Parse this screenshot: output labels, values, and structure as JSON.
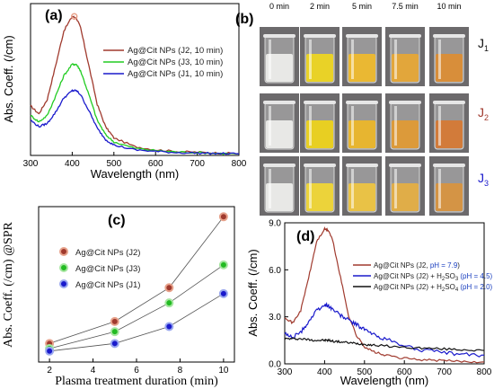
{
  "colors": {
    "red": "#a03a2e",
    "green": "#22cc22",
    "blue": "#1a1acc",
    "black": "#111111",
    "pH_blue": "#1a3fbf"
  },
  "panel_a": {
    "letter": "(a)",
    "xlabel": "Wavelength (nm)",
    "ylabel": "Abs. Coeff. (/cm)",
    "legend": [
      "Ag@Cit NPs (J2, 10 min)",
      "Ag@Cit NPs (J3, 10 min)",
      "Ag@Cit NPs (J1, 10 min)"
    ]
  },
  "panel_b": {
    "letter": "(b)",
    "time_headers": [
      "0 min",
      "2 min",
      "5 min",
      "7.5 min",
      "10 min"
    ],
    "row_labels": [
      {
        "main": "J",
        "sub": "1"
      },
      {
        "main": "J",
        "sub": "2"
      },
      {
        "main": "J",
        "sub": "3"
      }
    ],
    "photo_colors": [
      [
        "#e8e8e6",
        "#e9d227",
        "#eab833",
        "#e2a63b",
        "#d88e3a"
      ],
      [
        "#e8e8e6",
        "#e8cf22",
        "#e7b530",
        "#dc9a3a",
        "#d27b3a"
      ],
      [
        "#e8e8e6",
        "#ecd33a",
        "#e9c246",
        "#e0ad48",
        "#d49445"
      ]
    ]
  },
  "panel_c": {
    "letter": "(c)",
    "xlabel": "Plasma treatment duration (min)",
    "ylabel": "Abs. Coeff. (/cm) @SPR",
    "legend": [
      "Ag@Cit NPs (J2)",
      "Ag@Cit NPs (J3)",
      "Ag@Cit NPs (J1)"
    ]
  },
  "panel_d": {
    "letter": "(d)",
    "xlabel": "Wavelength (nm)",
    "ylabel": "Abs. Coeff. (/cm)",
    "legend": [
      {
        "pre": "Ag@Cit NPs (J2, ",
        "ph": "pH = 7.9",
        "post": ")"
      },
      {
        "pre": "Ag@Cit NPs (J2) + H",
        "sub": "2",
        "mid": "SO",
        "sub2": "3",
        "ph": " (pH = 4.5)"
      },
      {
        "pre": "Ag@Cit NPs (J2) + H",
        "sub": "2",
        "mid": "SO",
        "sub2": "4",
        "ph": " (pH = 2.0)"
      }
    ]
  },
  "chart_data": [
    {
      "panel": "a",
      "type": "line",
      "xlabel": "Wavelength (nm)",
      "ylabel": "Abs. Coeff. (/cm)",
      "xlim": [
        300,
        800
      ],
      "xticks": [
        300,
        400,
        500,
        600,
        700,
        800
      ],
      "ylim": [
        0,
        9.5
      ],
      "x": [
        300,
        320,
        340,
        360,
        380,
        400,
        410,
        420,
        440,
        460,
        480,
        500,
        550,
        600,
        650,
        700,
        750,
        800
      ],
      "series": [
        {
          "name": "Ag@Cit NPs (J2, 10 min)",
          "color": "red",
          "values": [
            3.1,
            2.6,
            3.5,
            5.6,
            7.8,
            8.7,
            8.6,
            8.0,
            5.6,
            3.2,
            1.8,
            1.1,
            0.55,
            0.35,
            0.25,
            0.2,
            0.15,
            0.12
          ]
        },
        {
          "name": "Ag@Cit NPs (J3, 10 min)",
          "color": "green",
          "values": [
            2.5,
            2.1,
            2.5,
            3.7,
            5.0,
            5.7,
            5.7,
            5.3,
            3.8,
            2.2,
            1.3,
            0.85,
            0.45,
            0.3,
            0.22,
            0.18,
            0.13,
            0.1
          ]
        },
        {
          "name": "Ag@Cit NPs (J1, 10 min)",
          "color": "blue",
          "values": [
            2.2,
            1.8,
            2.0,
            2.7,
            3.6,
            4.05,
            4.05,
            3.8,
            2.8,
            1.7,
            1.0,
            0.65,
            0.35,
            0.25,
            0.18,
            0.15,
            0.12,
            0.1
          ]
        }
      ]
    },
    {
      "panel": "c",
      "type": "scatter",
      "xlabel": "Plasma treatment duration (min)",
      "ylabel": "Abs. Coeff. (/cm) @SPR",
      "xlim": [
        1.5,
        10.5
      ],
      "xticks": [
        2,
        4,
        6,
        8,
        10
      ],
      "ylim": [
        0,
        9.2
      ],
      "x": [
        2,
        5,
        7.5,
        10
      ],
      "series": [
        {
          "name": "Ag@Cit NPs (J2)",
          "color": "red",
          "values": [
            1.1,
            2.4,
            4.4,
            8.6
          ]
        },
        {
          "name": "Ag@Cit NPs (J3)",
          "color": "green",
          "values": [
            0.8,
            1.8,
            3.5,
            5.75
          ]
        },
        {
          "name": "Ag@Cit NPs (J1)",
          "color": "blue",
          "values": [
            0.65,
            1.1,
            2.1,
            4.05
          ]
        }
      ]
    },
    {
      "panel": "d",
      "type": "line",
      "xlabel": "Wavelength (nm)",
      "ylabel": "Abs. Coeff. (/cm)",
      "xlim": [
        300,
        800
      ],
      "xticks": [
        300,
        400,
        500,
        600,
        700,
        800
      ],
      "ylim": [
        0,
        9.0
      ],
      "yticks": [
        0.0,
        3.0,
        6.0,
        9.0
      ],
      "x": [
        300,
        320,
        340,
        360,
        380,
        400,
        410,
        420,
        440,
        460,
        480,
        500,
        520,
        550,
        600,
        650,
        700,
        750,
        800
      ],
      "series": [
        {
          "name": "Ag@Cit NPs (J2, pH = 7.9)",
          "color": "red",
          "values": [
            3.0,
            2.6,
            3.4,
            5.5,
            7.8,
            8.6,
            8.5,
            7.9,
            5.5,
            3.1,
            1.8,
            1.1,
            0.8,
            0.55,
            0.35,
            0.25,
            0.2,
            0.15,
            0.12
          ]
        },
        {
          "name": "Ag@Cit NPs (J2) + H2SO3 (pH = 4.5)",
          "color": "blue",
          "values": [
            1.9,
            1.7,
            2.0,
            2.7,
            3.4,
            3.75,
            3.7,
            3.5,
            3.1,
            2.8,
            2.5,
            2.2,
            1.9,
            1.6,
            1.15,
            0.85,
            0.7,
            0.6,
            0.55
          ]
        },
        {
          "name": "Ag@Cit NPs (J2) + H2SO4 (pH = 2.0)",
          "color": "black",
          "values": [
            1.6,
            1.6,
            1.6,
            1.55,
            1.5,
            1.5,
            1.5,
            1.45,
            1.4,
            1.35,
            1.3,
            1.25,
            1.2,
            1.15,
            1.05,
            1.0,
            0.95,
            0.9,
            0.85
          ]
        }
      ]
    }
  ]
}
